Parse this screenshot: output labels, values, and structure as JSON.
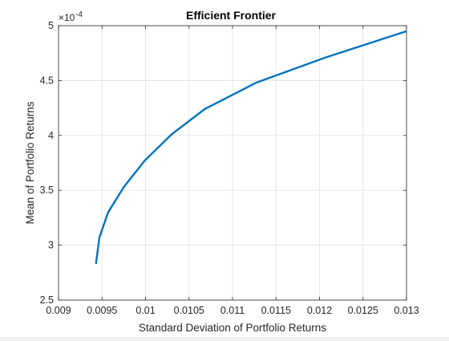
{
  "chart_data": {
    "type": "line",
    "title": "Efficient Frontier",
    "xlabel": "Standard Deviation of Portfolio Returns",
    "ylabel": "Mean of Portfolio Returns",
    "xlim": [
      0.009,
      0.013
    ],
    "ylim": [
      2.5,
      5
    ],
    "y_exponent_base": "×10",
    "y_exponent": "-4",
    "xticks": [
      "0.009",
      "0.0095",
      "0.01",
      "0.0105",
      "0.011",
      "0.0115",
      "0.012",
      "0.0125",
      "0.013"
    ],
    "yticks": [
      "2.5",
      "3",
      "3.5",
      "4",
      "4.5",
      "5"
    ],
    "grid": true,
    "series": [
      {
        "color": "#0072bd",
        "x": [
          0.00943,
          0.00947,
          0.00957,
          0.00975,
          0.00999,
          0.0103,
          0.01068,
          0.01127,
          0.01207,
          0.013
        ],
        "y": [
          2.83,
          3.07,
          3.3,
          3.53,
          3.77,
          4.01,
          4.24,
          4.48,
          4.71,
          4.95
        ]
      }
    ]
  }
}
